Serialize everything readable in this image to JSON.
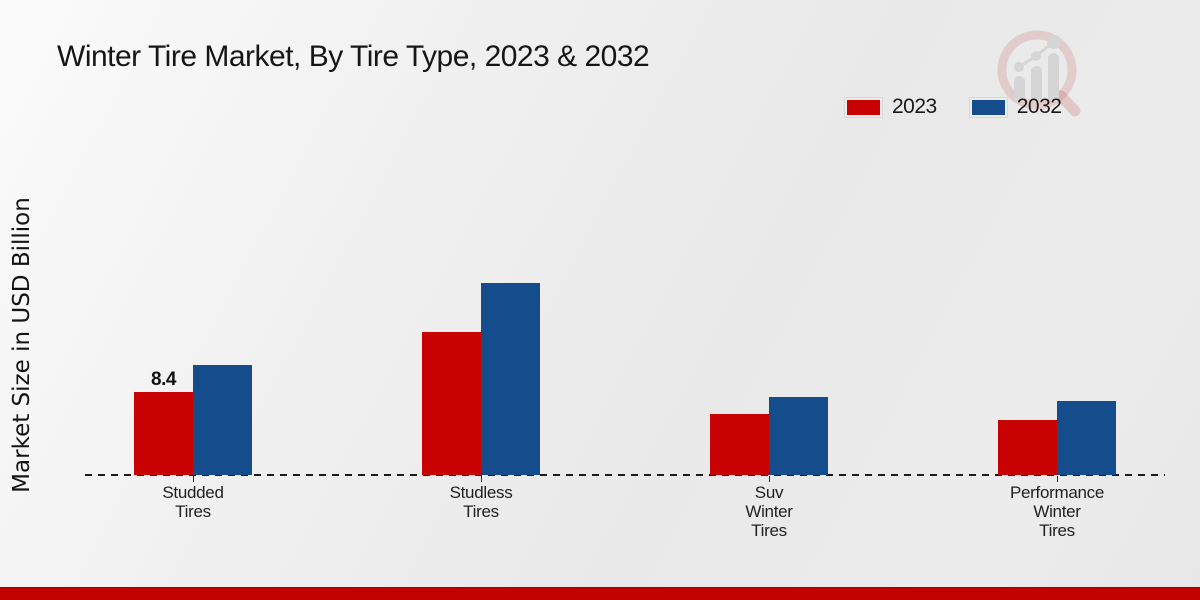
{
  "header": {
    "title": "Winter Tire Market, By Tire Type, 2023 & 2032"
  },
  "colors": {
    "series_2023": "#c80101",
    "series_2032": "#154d8c",
    "footer_band": "#c40101",
    "axis": "#1b1b1b",
    "background": "#ececec"
  },
  "watermark": {
    "icon": "magnifier-growth-chart-logo"
  },
  "chart_data": {
    "type": "bar",
    "title": "Winter Tire Market, By Tire Type, 2023 & 2032",
    "xlabel": "",
    "ylabel": "Market Size in USD Billion",
    "categories": [
      "Studded Tires",
      "Studless Tires",
      "Suv Winter Tires",
      "Performance Winter Tires"
    ],
    "category_lines": [
      [
        "Studded",
        "Tires"
      ],
      [
        "Studless",
        "Tires"
      ],
      [
        "Suv",
        "Winter",
        "Tires"
      ],
      [
        "Performance",
        "Winter",
        "Tires"
      ]
    ],
    "series": [
      {
        "name": "2023",
        "color": "#c80101",
        "values": [
          8.4,
          14.5,
          6.2,
          5.6
        ]
      },
      {
        "name": "2032",
        "color": "#154d8c",
        "values": [
          11.1,
          19.4,
          7.9,
          7.5
        ]
      }
    ],
    "data_labels": [
      {
        "series_index": 0,
        "category_index": 0,
        "text": "8.4"
      }
    ],
    "ylim": [
      0,
      20
    ],
    "grid": false,
    "y_axis_ticks_visible": false,
    "x_axis_style": "dashed",
    "legend_position": "top-right"
  }
}
